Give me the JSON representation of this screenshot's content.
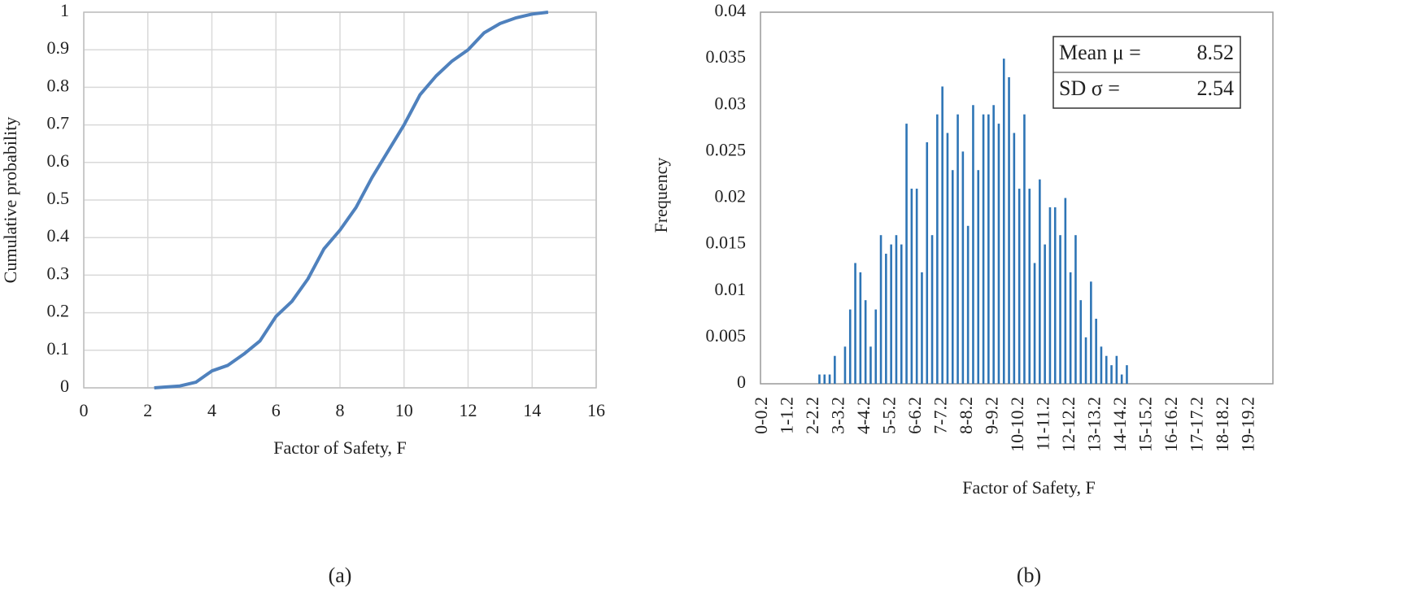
{
  "chart_data": [
    {
      "type": "line",
      "caption": "(a)",
      "xlabel": "Factor of Safety, F",
      "ylabel": "Cumulative probability",
      "xlim": [
        0,
        16
      ],
      "xticks": [
        0,
        2,
        4,
        6,
        8,
        10,
        12,
        14,
        16
      ],
      "ylim": [
        0,
        1
      ],
      "yticks": [
        0,
        0.1,
        0.2,
        0.3,
        0.4,
        0.5,
        0.6,
        0.7,
        0.8,
        0.9,
        1
      ],
      "grid": true,
      "color": "#4f81bd",
      "x": [
        2.2,
        2.5,
        3,
        3.5,
        4,
        4.5,
        5,
        5.5,
        6,
        6.5,
        7,
        7.5,
        8,
        8.5,
        9,
        9.5,
        10,
        10.5,
        11,
        11.5,
        12,
        12.5,
        13,
        13.5,
        14,
        14.5
      ],
      "values": [
        0,
        0.002,
        0.005,
        0.015,
        0.045,
        0.06,
        0.09,
        0.125,
        0.19,
        0.23,
        0.29,
        0.37,
        0.42,
        0.48,
        0.56,
        0.63,
        0.7,
        0.78,
        0.83,
        0.87,
        0.9,
        0.945,
        0.97,
        0.985,
        0.995,
        1
      ]
    },
    {
      "type": "bar",
      "caption": "(b)",
      "xlabel": "Factor of Safety, F",
      "ylabel": "Frequency",
      "ylim": [
        0,
        0.04
      ],
      "yticks": [
        0,
        0.005,
        0.01,
        0.015,
        0.02,
        0.025,
        0.03,
        0.035,
        0.04
      ],
      "grid": false,
      "color": "#2e75b6",
      "stats": [
        {
          "label": "Mean μ =",
          "value": 8.52
        },
        {
          "label": "SD σ =",
          "value": 2.54
        }
      ],
      "categories": [
        "0-0.2",
        null,
        null,
        null,
        null,
        "1-1.2",
        null,
        null,
        null,
        null,
        "2-2.2",
        null,
        null,
        null,
        null,
        "3-3.2",
        null,
        null,
        null,
        null,
        "4-4.2",
        null,
        null,
        null,
        null,
        "5-5.2",
        null,
        null,
        null,
        null,
        "6-6.2",
        null,
        null,
        null,
        null,
        "7-7.2",
        null,
        null,
        null,
        null,
        "8-8.2",
        null,
        null,
        null,
        null,
        "9-9.2",
        null,
        null,
        null,
        null,
        "10-10.2",
        null,
        null,
        null,
        null,
        "11-11.2",
        null,
        null,
        null,
        null,
        "12-12.2",
        null,
        null,
        null,
        null,
        "13-13.2",
        null,
        null,
        null,
        null,
        "14-14.2",
        null,
        null,
        null,
        null,
        "15-15.2",
        null,
        null,
        null,
        null,
        "16-16.2",
        null,
        null,
        null,
        null,
        "17-17.2",
        null,
        null,
        null,
        null,
        "18-18.2",
        null,
        null,
        null,
        null,
        "19-19.2",
        null,
        null,
        null,
        null
      ],
      "values": [
        0,
        0,
        0,
        0,
        0,
        0,
        0,
        0,
        0,
        0,
        0,
        0.001,
        0.001,
        0.001,
        0.003,
        0,
        0.004,
        0.008,
        0.013,
        0.012,
        0.009,
        0.004,
        0.008,
        0.016,
        0.014,
        0.015,
        0.016,
        0.015,
        0.028,
        0.021,
        0.021,
        0.012,
        0.026,
        0.016,
        0.029,
        0.032,
        0.027,
        0.023,
        0.029,
        0.025,
        0.017,
        0.03,
        0.023,
        0.029,
        0.029,
        0.03,
        0.028,
        0.035,
        0.033,
        0.027,
        0.021,
        0.029,
        0.021,
        0.013,
        0.022,
        0.015,
        0.019,
        0.019,
        0.016,
        0.02,
        0.012,
        0.016,
        0.009,
        0.005,
        0.011,
        0.007,
        0.004,
        0.003,
        0.002,
        0.003,
        0.001,
        0.002,
        0,
        0,
        0,
        0,
        0,
        0,
        0,
        0,
        0,
        0,
        0,
        0,
        0,
        0,
        0,
        0,
        0,
        0,
        0,
        0,
        0,
        0,
        0,
        0,
        0,
        0,
        0,
        0
      ]
    }
  ]
}
